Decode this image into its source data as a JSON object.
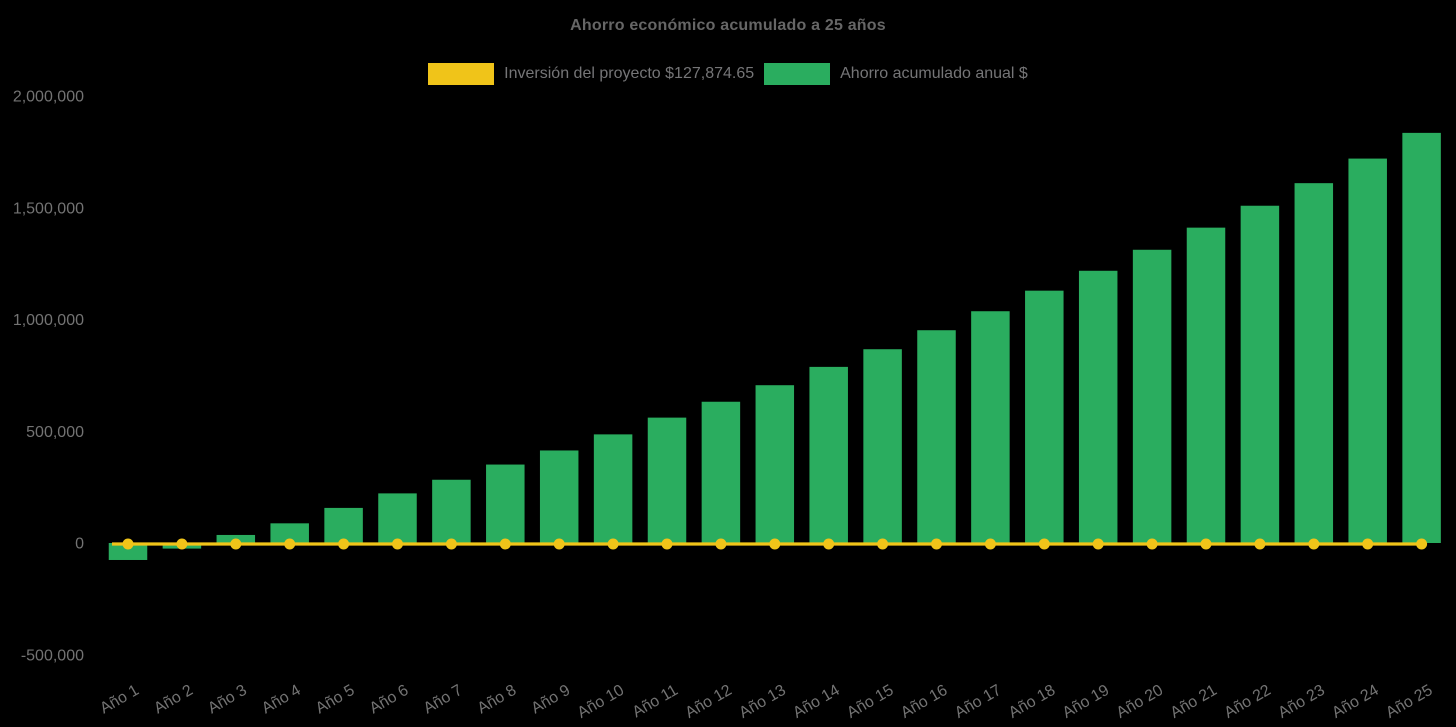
{
  "page": {
    "background_color": "#000000",
    "title_color": "#666666",
    "axis_label_color": "#737373",
    "legend_text_color": "#757577"
  },
  "chart_data": {
    "type": "bar",
    "subtype": "bar-with-overlaid-line",
    "title": "Ahorro económico acumulado a 25 años",
    "categories": [
      "Año 1",
      "Año 2",
      "Año 3",
      "Año 4",
      "Año 5",
      "Año 6",
      "Año 7",
      "Año 8",
      "Año 9",
      "Año 10",
      "Año 11",
      "Año 12",
      "Año 13",
      "Año 14",
      "Año 15",
      "Año 16",
      "Año 17",
      "Año 18",
      "Año 19",
      "Año 20",
      "Año 21",
      "Año 22",
      "Año 23",
      "Año 24",
      "Año 25"
    ],
    "series": [
      {
        "name": "Inversión del proyecto $127,874.65",
        "type": "line",
        "color": "#f0c419",
        "marker": "circle",
        "investment_value": 127874.65,
        "values": [
          0,
          0,
          0,
          0,
          0,
          0,
          0,
          0,
          0,
          0,
          0,
          0,
          0,
          0,
          0,
          0,
          0,
          0,
          0,
          0,
          0,
          0,
          0,
          0,
          0
        ]
      },
      {
        "name": "Ahorro acumulado anual $",
        "type": "bar",
        "color": "#2aad5f",
        "values": [
          -76000,
          -25000,
          36000,
          88000,
          157000,
          222000,
          283000,
          351000,
          414000,
          486000,
          561000,
          632000,
          706000,
          788000,
          867000,
          952000,
          1037000,
          1129000,
          1218000,
          1312000,
          1411000,
          1509000,
          1610000,
          1720000,
          1835000
        ]
      }
    ],
    "xlabel": "",
    "ylabel": "",
    "ylim": [
      -500000,
      2000000
    ],
    "yticks": [
      2000000,
      1500000,
      1000000,
      500000,
      0,
      -500000
    ],
    "ytick_labels": [
      "2,000,000",
      "1,500,000",
      "1,000,000",
      "500,000",
      "0",
      "-500,000"
    ],
    "grid": false,
    "legend_position": "top"
  }
}
